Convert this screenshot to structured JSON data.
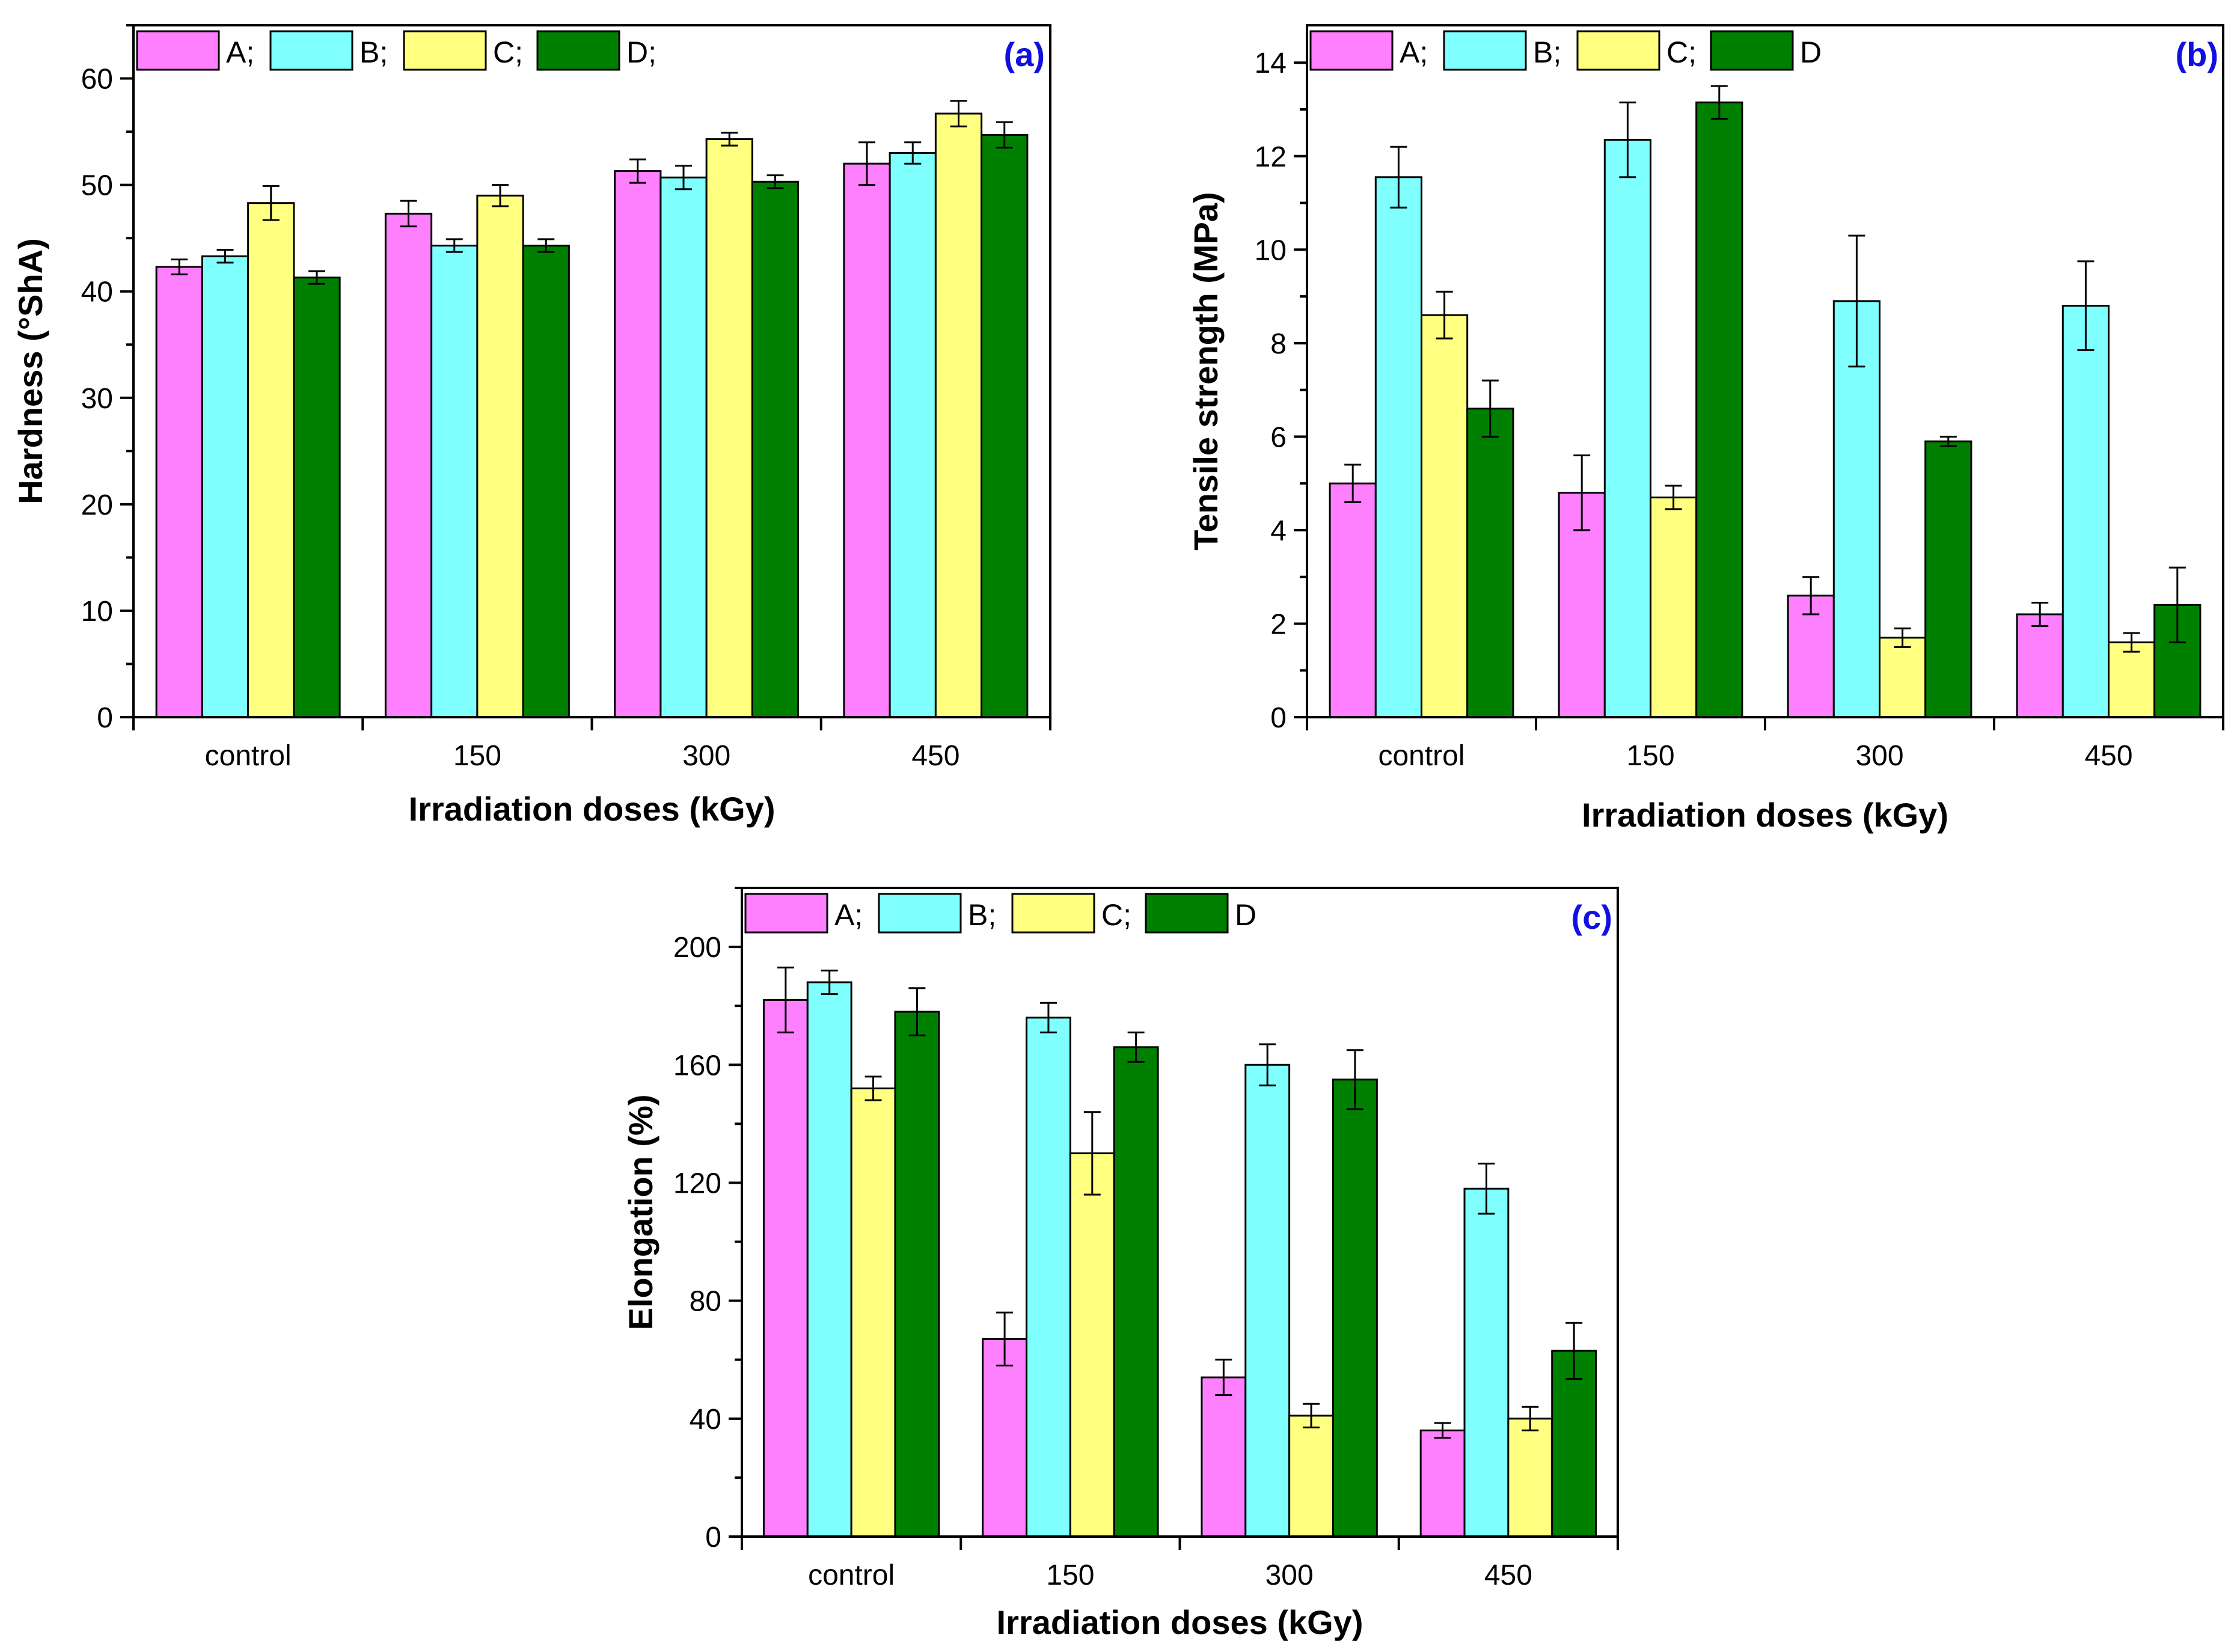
{
  "colors": {
    "A": "#ff80ff",
    "B": "#80ffff",
    "C": "#ffff80",
    "D": "#008000",
    "panel_label": "#1010e0"
  },
  "chart_data": [
    {
      "type": "bar",
      "panel": "(a)",
      "xlabel": "Irradiation doses (kGy)",
      "ylabel": "Hardness (°ShA)",
      "categories": [
        "control",
        "150",
        "300",
        "450"
      ],
      "legend": [
        "A;",
        "B;",
        "C;",
        "D;"
      ],
      "legend_position": "top-left",
      "ylim": [
        0,
        65
      ],
      "yticks": [
        0,
        10,
        20,
        30,
        40,
        50,
        60
      ],
      "series": [
        {
          "name": "A",
          "values": [
            42.3,
            47.3,
            51.3,
            52.0
          ],
          "errors": [
            0.7,
            1.2,
            1.1,
            2.0
          ]
        },
        {
          "name": "B",
          "values": [
            43.3,
            44.3,
            50.7,
            53.0
          ],
          "errors": [
            0.6,
            0.6,
            1.1,
            1.0
          ]
        },
        {
          "name": "C",
          "values": [
            48.3,
            49.0,
            54.3,
            56.7
          ],
          "errors": [
            1.6,
            1.0,
            0.6,
            1.2
          ]
        },
        {
          "name": "D",
          "values": [
            41.3,
            44.3,
            50.3,
            54.7
          ],
          "errors": [
            0.6,
            0.6,
            0.6,
            1.2
          ]
        }
      ]
    },
    {
      "type": "bar",
      "panel": "(b)",
      "xlabel": "Irradiation doses (kGy)",
      "ylabel": "Tensile strength (MPa)",
      "categories": [
        "control",
        "150",
        "300",
        "450"
      ],
      "legend": [
        "A;",
        "B;",
        "C;",
        "D"
      ],
      "legend_position": "top-left",
      "ylim": [
        0,
        14.8
      ],
      "yticks": [
        0,
        2,
        4,
        6,
        8,
        10,
        12,
        14
      ],
      "series": [
        {
          "name": "A",
          "values": [
            5.0,
            4.8,
            2.6,
            2.2
          ],
          "errors": [
            0.4,
            0.8,
            0.4,
            0.25
          ]
        },
        {
          "name": "B",
          "values": [
            11.55,
            12.35,
            8.9,
            8.8
          ],
          "errors": [
            0.65,
            0.8,
            1.4,
            0.95
          ]
        },
        {
          "name": "C",
          "values": [
            8.6,
            4.7,
            1.7,
            1.6
          ],
          "errors": [
            0.5,
            0.25,
            0.2,
            0.2
          ]
        },
        {
          "name": "D",
          "values": [
            6.6,
            13.15,
            5.9,
            2.4
          ],
          "errors": [
            0.6,
            0.35,
            0.1,
            0.8
          ]
        }
      ]
    },
    {
      "type": "bar",
      "panel": "(c)",
      "xlabel": "Irradiation doses (kGy)",
      "ylabel": "Elongation (%)",
      "categories": [
        "control",
        "150",
        "300",
        "450"
      ],
      "legend": [
        "A;",
        "B;",
        "C;",
        "D"
      ],
      "legend_position": "top-left",
      "ylim": [
        0,
        220
      ],
      "yticks": [
        0,
        40,
        80,
        120,
        160,
        200
      ],
      "series": [
        {
          "name": "A",
          "values": [
            182,
            67,
            54,
            36
          ],
          "errors": [
            11,
            9,
            6,
            2.5
          ]
        },
        {
          "name": "B",
          "values": [
            188,
            176,
            160,
            118
          ],
          "errors": [
            4,
            5,
            7,
            8.5
          ]
        },
        {
          "name": "C",
          "values": [
            152,
            130,
            41,
            40
          ],
          "errors": [
            4,
            14,
            4,
            4
          ]
        },
        {
          "name": "D",
          "values": [
            178,
            166,
            155,
            63
          ],
          "errors": [
            8,
            5,
            10,
            9.5
          ]
        }
      ]
    }
  ]
}
